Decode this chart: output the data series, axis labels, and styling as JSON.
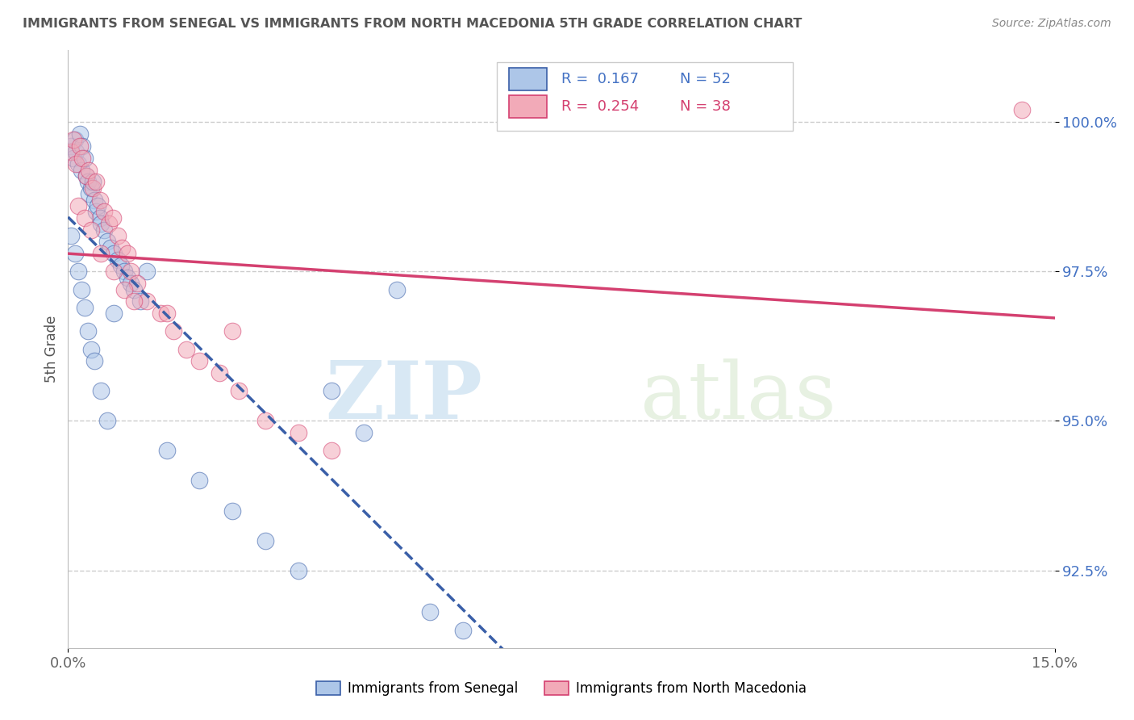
{
  "title": "IMMIGRANTS FROM SENEGAL VS IMMIGRANTS FROM NORTH MACEDONIA 5TH GRADE CORRELATION CHART",
  "source": "Source: ZipAtlas.com",
  "xlabel_blue": "Immigrants from Senegal",
  "xlabel_pink": "Immigrants from North Macedonia",
  "ylabel": "5th Grade",
  "r_blue": 0.167,
  "n_blue": 52,
  "r_pink": 0.254,
  "n_pink": 38,
  "xlim": [
    0.0,
    15.0
  ],
  "ylim": [
    91.2,
    101.2
  ],
  "yticks": [
    92.5,
    95.0,
    97.5,
    100.0
  ],
  "ytick_labels": [
    "92.5%",
    "95.0%",
    "97.5%",
    "100.0%"
  ],
  "xticks": [
    0.0,
    15.0
  ],
  "xtick_labels": [
    "0.0%",
    "15.0%"
  ],
  "color_blue": "#adc6e8",
  "color_pink": "#f2aab8",
  "line_color_blue": "#3a5fa8",
  "line_color_pink": "#d44070",
  "background": "#ffffff",
  "watermark_zip": "ZIP",
  "watermark_atlas": "atlas",
  "blue_points_x": [
    0.05,
    0.08,
    0.1,
    0.12,
    0.15,
    0.18,
    0.2,
    0.22,
    0.25,
    0.28,
    0.3,
    0.32,
    0.35,
    0.38,
    0.4,
    0.42,
    0.45,
    0.48,
    0.5,
    0.55,
    0.6,
    0.65,
    0.7,
    0.75,
    0.8,
    0.85,
    0.9,
    0.95,
    1.0,
    1.1,
    0.05,
    0.1,
    0.15,
    0.2,
    0.25,
    0.3,
    0.35,
    0.4,
    0.5,
    0.6,
    1.5,
    2.0,
    2.5,
    3.0,
    3.5,
    4.0,
    4.5,
    5.0,
    5.5,
    6.0,
    0.7,
    1.2
  ],
  "blue_points_y": [
    99.6,
    99.4,
    99.7,
    99.5,
    99.3,
    99.8,
    99.2,
    99.6,
    99.4,
    99.1,
    99.0,
    98.8,
    98.9,
    99.0,
    98.7,
    98.5,
    98.6,
    98.4,
    98.3,
    98.2,
    98.0,
    97.9,
    97.8,
    97.7,
    97.6,
    97.5,
    97.4,
    97.3,
    97.2,
    97.0,
    98.1,
    97.8,
    97.5,
    97.2,
    96.9,
    96.5,
    96.2,
    96.0,
    95.5,
    95.0,
    94.5,
    94.0,
    93.5,
    93.0,
    92.5,
    95.5,
    94.8,
    97.2,
    91.8,
    91.5,
    96.8,
    97.5
  ],
  "pink_points_x": [
    0.05,
    0.08,
    0.12,
    0.18,
    0.22,
    0.28,
    0.32,
    0.38,
    0.42,
    0.48,
    0.55,
    0.62,
    0.68,
    0.75,
    0.82,
    0.9,
    0.95,
    1.05,
    1.2,
    1.4,
    1.6,
    1.8,
    2.0,
    2.3,
    2.6,
    3.0,
    3.5,
    4.0,
    0.15,
    0.25,
    0.35,
    0.5,
    0.7,
    0.85,
    1.0,
    1.5,
    2.5,
    14.5
  ],
  "pink_points_y": [
    99.5,
    99.7,
    99.3,
    99.6,
    99.4,
    99.1,
    99.2,
    98.9,
    99.0,
    98.7,
    98.5,
    98.3,
    98.4,
    98.1,
    97.9,
    97.8,
    97.5,
    97.3,
    97.0,
    96.8,
    96.5,
    96.2,
    96.0,
    95.8,
    95.5,
    95.0,
    94.8,
    94.5,
    98.6,
    98.4,
    98.2,
    97.8,
    97.5,
    97.2,
    97.0,
    96.8,
    96.5,
    100.2
  ]
}
